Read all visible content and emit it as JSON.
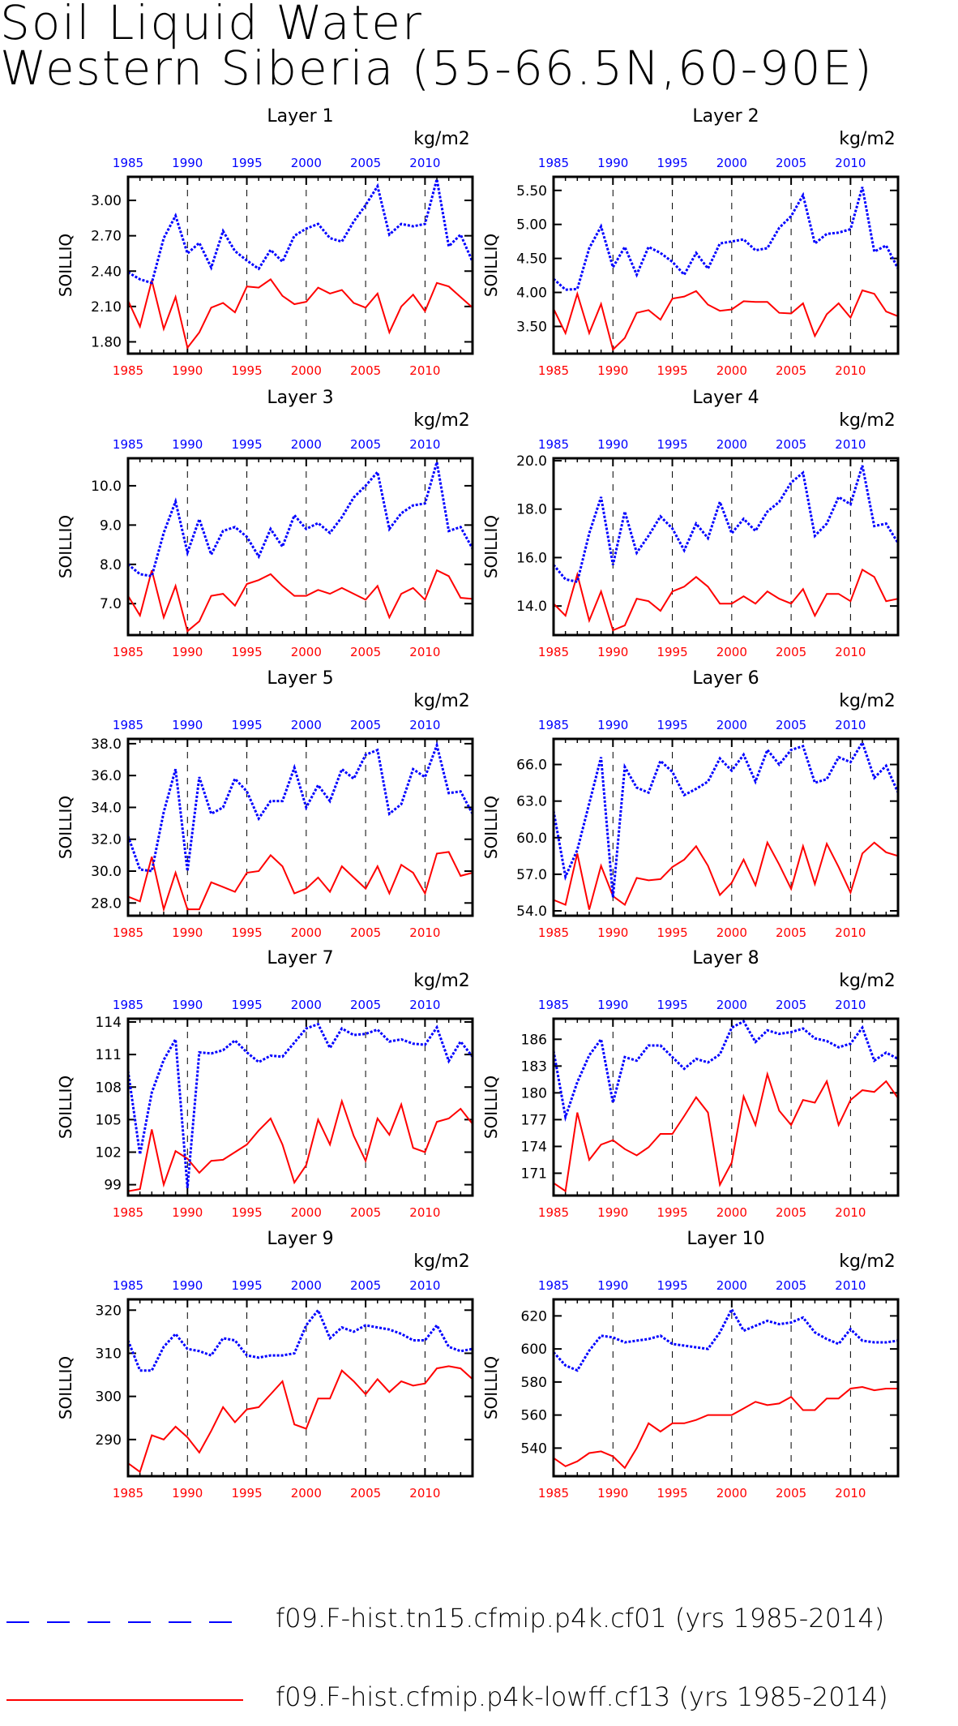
{
  "title": {
    "line1": "Soil Liquid Water",
    "line2": "Western Siberia (55-66.5N,60-90E)"
  },
  "colors": {
    "series1": "#0000ff",
    "series2": "#ff0000",
    "axis": "#000000"
  },
  "legend": [
    {
      "label": "f09.F-hist.tn15.cfmip.p4k.cf01 (yrs 1985-2014)",
      "color": "#0000ff",
      "style": "dashed"
    },
    {
      "label": "f09.F-hist.cfmip.p4k-lowff.cf13 (yrs 1985-2014)",
      "color": "#ff0000",
      "style": "solid"
    }
  ],
  "chart_data": [
    {
      "type": "line",
      "title": "Layer 1",
      "ylabel": "SOILLIQ",
      "units": "kg/m2",
      "x_start": 1985,
      "x_end": 2014,
      "xlim": [
        1985,
        2014
      ],
      "xticks": [
        1985,
        1990,
        1995,
        2000,
        2005,
        2010
      ],
      "ylim": [
        1.7,
        3.2
      ],
      "yticks": [
        "1.80",
        "2.10",
        "2.40",
        "2.70",
        "3.00"
      ],
      "series": [
        {
          "name": "f09.F-hist.tn15.cfmip.p4k.cf01 (yrs 1985-2014)",
          "values": [
            2.39,
            2.33,
            2.3,
            2.68,
            2.87,
            2.55,
            2.64,
            2.43,
            2.74,
            2.57,
            2.49,
            2.42,
            2.58,
            2.48,
            2.7,
            2.76,
            2.8,
            2.68,
            2.65,
            2.82,
            2.96,
            3.12,
            2.71,
            2.8,
            2.78,
            2.8,
            3.18,
            2.61,
            2.71,
            2.48
          ]
        },
        {
          "name": "f09.F-hist.cfmip.p4k-lowff.cf13 (yrs 1985-2014)",
          "values": [
            2.15,
            1.93,
            2.32,
            1.91,
            2.18,
            1.75,
            1.88,
            2.09,
            2.13,
            2.05,
            2.27,
            2.26,
            2.33,
            2.19,
            2.12,
            2.14,
            2.26,
            2.21,
            2.24,
            2.13,
            2.09,
            2.21,
            1.88,
            2.1,
            2.2,
            2.06,
            2.3,
            2.27,
            2.18,
            2.09
          ]
        }
      ]
    },
    {
      "type": "line",
      "title": "Layer 2",
      "ylabel": "SOILLIQ",
      "units": "kg/m2",
      "x_start": 1985,
      "x_end": 2014,
      "xlim": [
        1985,
        2014
      ],
      "xticks": [
        1985,
        1990,
        1995,
        2000,
        2005,
        2010
      ],
      "ylim": [
        3.1,
        5.7
      ],
      "yticks": [
        "3.50",
        "4.00",
        "4.50",
        "5.00",
        "5.50"
      ],
      "series": [
        {
          "name": "f09.F-hist.tn15.cfmip.p4k.cf01 (yrs 1985-2014)",
          "values": [
            4.2,
            4.04,
            4.05,
            4.65,
            4.97,
            4.37,
            4.67,
            4.26,
            4.67,
            4.58,
            4.45,
            4.26,
            4.58,
            4.35,
            4.72,
            4.75,
            4.78,
            4.62,
            4.65,
            4.95,
            5.12,
            5.43,
            4.72,
            4.86,
            4.88,
            4.93,
            5.55,
            4.6,
            4.69,
            4.35
          ]
        },
        {
          "name": "f09.F-hist.cfmip.p4k-lowff.cf13 (yrs 1985-2014)",
          "values": [
            3.76,
            3.4,
            3.98,
            3.4,
            3.83,
            3.16,
            3.33,
            3.7,
            3.74,
            3.6,
            3.91,
            3.94,
            4.02,
            3.82,
            3.73,
            3.75,
            3.87,
            3.86,
            3.86,
            3.7,
            3.69,
            3.84,
            3.36,
            3.68,
            3.84,
            3.63,
            4.03,
            3.98,
            3.72,
            3.65
          ]
        }
      ]
    },
    {
      "type": "line",
      "title": "Layer 3",
      "ylabel": "SOILLIQ",
      "units": "kg/m2",
      "x_start": 1985,
      "x_end": 2014,
      "xlim": [
        1985,
        2014
      ],
      "xticks": [
        1985,
        1990,
        1995,
        2000,
        2005,
        2010
      ],
      "ylim": [
        6.2,
        10.7
      ],
      "yticks": [
        "7.0",
        "8.0",
        "9.0",
        "10.0"
      ],
      "series": [
        {
          "name": "f09.F-hist.tn15.cfmip.p4k.cf01 (yrs 1985-2014)",
          "values": [
            8.0,
            7.75,
            7.7,
            8.8,
            9.6,
            8.3,
            9.15,
            8.25,
            8.85,
            8.95,
            8.7,
            8.2,
            8.9,
            8.45,
            9.25,
            8.9,
            9.05,
            8.8,
            9.2,
            9.7,
            10.0,
            10.35,
            8.9,
            9.3,
            9.5,
            9.55,
            10.6,
            8.85,
            8.95,
            8.4
          ]
        },
        {
          "name": "f09.F-hist.cfmip.p4k-lowff.cf13 (yrs 1985-2014)",
          "values": [
            7.2,
            6.7,
            7.85,
            6.65,
            7.45,
            6.3,
            6.55,
            7.2,
            7.25,
            6.95,
            7.5,
            7.6,
            7.75,
            7.45,
            7.2,
            7.2,
            7.35,
            7.25,
            7.4,
            7.25,
            7.1,
            7.45,
            6.65,
            7.25,
            7.4,
            7.1,
            7.85,
            7.7,
            7.15,
            7.12
          ]
        }
      ]
    },
    {
      "type": "line",
      "title": "Layer 4",
      "ylabel": "SOILLIQ",
      "units": "kg/m2",
      "x_start": 1985,
      "x_end": 2014,
      "xlim": [
        1985,
        2014
      ],
      "xticks": [
        1985,
        1990,
        1995,
        2000,
        2005,
        2010
      ],
      "ylim": [
        12.8,
        20.1
      ],
      "yticks": [
        "14.0",
        "16.0",
        "18.0",
        "20.0"
      ],
      "series": [
        {
          "name": "f09.F-hist.tn15.cfmip.p4k.cf01 (yrs 1985-2014)",
          "values": [
            15.7,
            15.1,
            15.0,
            17.0,
            18.5,
            15.7,
            17.9,
            16.2,
            16.9,
            17.7,
            17.2,
            16.3,
            17.4,
            16.8,
            18.3,
            17.0,
            17.6,
            17.1,
            17.9,
            18.3,
            19.1,
            19.5,
            16.9,
            17.4,
            18.5,
            18.2,
            19.8,
            17.3,
            17.4,
            16.6
          ]
        },
        {
          "name": "f09.F-hist.cfmip.p4k-lowff.cf13 (yrs 1985-2014)",
          "values": [
            14.1,
            13.6,
            15.3,
            13.4,
            14.6,
            13.0,
            13.2,
            14.3,
            14.2,
            13.8,
            14.6,
            14.8,
            15.2,
            14.8,
            14.1,
            14.1,
            14.4,
            14.1,
            14.6,
            14.3,
            14.1,
            14.7,
            13.6,
            14.5,
            14.5,
            14.2,
            15.5,
            15.2,
            14.2,
            14.3
          ]
        }
      ]
    },
    {
      "type": "line",
      "title": "Layer 5",
      "ylabel": "SOILLIQ",
      "units": "kg/m2",
      "x_start": 1985,
      "x_end": 2014,
      "xlim": [
        1985,
        2014
      ],
      "xticks": [
        1985,
        1990,
        1995,
        2000,
        2005,
        2010
      ],
      "ylim": [
        27.2,
        38.3
      ],
      "yticks": [
        "28.0",
        "30.0",
        "32.0",
        "34.0",
        "36.0",
        "38.0"
      ],
      "series": [
        {
          "name": "f09.F-hist.tn15.cfmip.p4k.cf01 (yrs 1985-2014)",
          "values": [
            32.2,
            30.1,
            30.0,
            33.7,
            36.4,
            30.0,
            35.9,
            33.6,
            34.0,
            35.8,
            35.0,
            33.3,
            34.4,
            34.4,
            36.5,
            34.0,
            35.4,
            34.4,
            36.4,
            35.8,
            37.3,
            37.6,
            33.6,
            34.2,
            36.4,
            35.9,
            37.9,
            34.9,
            35.0,
            33.6
          ]
        },
        {
          "name": "f09.F-hist.cfmip.p4k-lowff.cf13 (yrs 1985-2014)",
          "values": [
            28.4,
            28.1,
            30.9,
            27.6,
            29.9,
            27.6,
            27.6,
            29.3,
            29.0,
            28.7,
            29.9,
            30.0,
            31.0,
            30.3,
            28.6,
            28.9,
            29.6,
            28.7,
            30.3,
            29.6,
            28.9,
            30.3,
            28.6,
            30.4,
            29.9,
            28.6,
            31.1,
            31.2,
            29.7,
            29.9
          ]
        }
      ]
    },
    {
      "type": "line",
      "title": "Layer 6",
      "ylabel": "SOILLIQ",
      "units": "kg/m2",
      "x_start": 1985,
      "x_end": 2014,
      "xlim": [
        1985,
        2014
      ],
      "xticks": [
        1985,
        1990,
        1995,
        2000,
        2005,
        2010
      ],
      "ylim": [
        53.6,
        68.1
      ],
      "yticks": [
        "54.0",
        "57.0",
        "60.0",
        "63.0",
        "66.0"
      ],
      "series": [
        {
          "name": "f09.F-hist.tn15.cfmip.p4k.cf01 (yrs 1985-2014)",
          "values": [
            62.2,
            56.8,
            59.0,
            62.8,
            66.6,
            55.1,
            65.8,
            64.1,
            63.7,
            66.3,
            65.4,
            63.5,
            64.0,
            64.6,
            66.5,
            65.5,
            66.8,
            64.6,
            67.2,
            66.0,
            67.2,
            67.5,
            64.5,
            64.8,
            66.6,
            66.2,
            67.8,
            64.9,
            65.9,
            63.7
          ]
        },
        {
          "name": "f09.F-hist.cfmip.p4k-lowff.cf13 (yrs 1985-2014)",
          "values": [
            54.9,
            54.5,
            58.7,
            54.1,
            57.7,
            55.2,
            54.5,
            56.7,
            56.5,
            56.6,
            57.6,
            58.2,
            59.3,
            57.7,
            55.3,
            56.3,
            58.2,
            56.1,
            59.6,
            57.8,
            55.8,
            59.3,
            56.2,
            59.5,
            57.6,
            55.5,
            58.7,
            59.6,
            58.8,
            58.5
          ]
        }
      ]
    },
    {
      "type": "line",
      "title": "Layer 7",
      "ylabel": "SOILLIQ",
      "units": "kg/m2",
      "x_start": 1985,
      "x_end": 2014,
      "xlim": [
        1985,
        2014
      ],
      "xticks": [
        1985,
        1990,
        1995,
        2000,
        2005,
        2010
      ],
      "ylim": [
        98.0,
        114.3
      ],
      "yticks": [
        "99",
        "102",
        "105",
        "108",
        "111",
        "114"
      ],
      "series": [
        {
          "name": "f09.F-hist.tn15.cfmip.p4k.cf01 (yrs 1985-2014)",
          "values": [
            109.5,
            101.8,
            107.5,
            110.5,
            112.4,
            98.7,
            111.2,
            111.1,
            111.4,
            112.3,
            111.2,
            110.3,
            110.9,
            110.8,
            112.1,
            113.4,
            113.8,
            111.6,
            113.4,
            112.8,
            112.9,
            113.3,
            112.2,
            112.4,
            112.0,
            111.9,
            113.5,
            110.4,
            112.2,
            110.8
          ]
        },
        {
          "name": "f09.F-hist.cfmip.p4k-lowff.cf13 (yrs 1985-2014)",
          "values": [
            98.4,
            98.6,
            104.1,
            99.0,
            102.1,
            101.4,
            100.1,
            101.2,
            101.3,
            102.0,
            102.7,
            104.0,
            105.1,
            102.7,
            99.2,
            100.8,
            105.0,
            102.7,
            106.7,
            103.5,
            101.2,
            105.1,
            103.6,
            106.4,
            102.4,
            102.0,
            104.8,
            105.1,
            106.0,
            104.6
          ]
        }
      ]
    },
    {
      "type": "line",
      "title": "Layer 8",
      "ylabel": "SOILLIQ",
      "units": "kg/m2",
      "x_start": 1985,
      "x_end": 2014,
      "xlim": [
        1985,
        2014
      ],
      "xticks": [
        1985,
        1990,
        1995,
        2000,
        2005,
        2010
      ],
      "ylim": [
        168.5,
        188.3
      ],
      "yticks": [
        "171",
        "174",
        "177",
        "180",
        "183",
        "186"
      ],
      "series": [
        {
          "name": "f09.F-hist.tn15.cfmip.p4k.cf01 (yrs 1985-2014)",
          "values": [
            184.7,
            177.3,
            181.2,
            184.2,
            186.0,
            178.9,
            184.0,
            183.6,
            185.3,
            185.3,
            184.0,
            182.7,
            183.8,
            183.4,
            184.3,
            187.3,
            188.0,
            185.7,
            187.0,
            186.6,
            186.8,
            187.2,
            186.1,
            185.8,
            185.1,
            185.5,
            187.3,
            183.6,
            184.5,
            183.8
          ]
        },
        {
          "name": "f09.F-hist.cfmip.p4k-lowff.cf13 (yrs 1985-2014)",
          "values": [
            169.9,
            169.0,
            177.8,
            172.5,
            174.2,
            174.7,
            173.7,
            173.0,
            173.9,
            175.4,
            175.4,
            177.4,
            179.5,
            177.8,
            169.7,
            172.2,
            179.6,
            176.4,
            182.1,
            178.0,
            176.4,
            179.2,
            178.9,
            181.3,
            176.4,
            179.2,
            180.3,
            180.1,
            181.3,
            179.4
          ]
        }
      ]
    },
    {
      "type": "line",
      "title": "Layer 9",
      "ylabel": "SOILLIQ",
      "units": "kg/m2",
      "x_start": 1985,
      "x_end": 2014,
      "xlim": [
        1985,
        2014
      ],
      "xticks": [
        1985,
        1990,
        1995,
        2000,
        2005,
        2010
      ],
      "ylim": [
        281.5,
        322.5
      ],
      "yticks": [
        "290",
        "300",
        "310",
        "320"
      ],
      "series": [
        {
          "name": "f09.F-hist.tn15.cfmip.p4k.cf01 (yrs 1985-2014)",
          "values": [
            313.0,
            306.0,
            306.0,
            311.5,
            314.5,
            311.0,
            310.5,
            309.5,
            313.5,
            313.0,
            309.5,
            309.0,
            309.5,
            309.5,
            310.0,
            316.5,
            320.0,
            313.5,
            316.0,
            315.0,
            316.5,
            316.0,
            315.5,
            314.5,
            313.0,
            313.0,
            316.5,
            311.5,
            310.5,
            311.0
          ]
        },
        {
          "name": "f09.F-hist.cfmip.p4k-lowff.cf13 (yrs 1985-2014)",
          "values": [
            284.5,
            282.5,
            291.0,
            290.0,
            293.0,
            290.5,
            287.0,
            292.0,
            297.5,
            294.0,
            297.0,
            297.5,
            300.5,
            303.5,
            293.5,
            292.5,
            299.5,
            299.5,
            306.0,
            303.5,
            300.5,
            304.0,
            301.0,
            303.5,
            302.5,
            303.0,
            306.5,
            307.0,
            306.5,
            304.0
          ]
        }
      ]
    },
    {
      "type": "line",
      "title": "Layer 10",
      "ylabel": "SOILLIQ",
      "units": "kg/m2",
      "x_start": 1985,
      "x_end": 2014,
      "xlim": [
        1985,
        2014
      ],
      "xticks": [
        1985,
        1990,
        1995,
        2000,
        2005,
        2010
      ],
      "ylim": [
        523.0,
        630.0
      ],
      "yticks": [
        "540",
        "560",
        "580",
        "600",
        "620"
      ],
      "series": [
        {
          "name": "f09.F-hist.tn15.cfmip.p4k.cf01 (yrs 1985-2014)",
          "values": [
            598,
            590,
            587,
            599,
            608,
            607,
            604,
            605,
            606,
            608,
            603,
            602,
            601,
            600,
            610,
            624,
            611,
            614,
            617,
            615,
            616,
            619,
            610,
            606,
            603,
            612,
            605,
            604,
            604,
            605
          ]
        },
        {
          "name": "f09.F-hist.cfmip.p4k-lowff.cf13 (yrs 1985-2014)",
          "values": [
            534,
            529,
            532,
            537,
            538,
            535,
            528,
            540,
            555,
            550,
            555,
            555,
            557,
            560,
            560,
            560,
            564,
            568,
            566,
            567,
            571,
            563,
            563,
            570,
            570,
            576,
            577,
            575,
            576,
            576
          ]
        }
      ]
    }
  ]
}
